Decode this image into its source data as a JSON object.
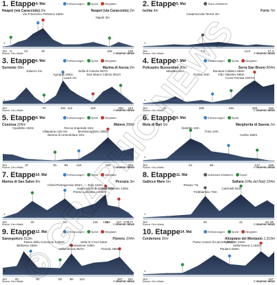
{
  "legend": {
    "sprint": "Sprint",
    "refresh": "Erfrischungen",
    "mountain": "Bergfahrt",
    "team_tt": "Team Zeitfahren",
    "indiv_tt": "Individuell Zeitfahren"
  },
  "colors": {
    "sprint": "#2a8d3c",
    "refresh": "#3a82c4",
    "mountain": "#c0392b",
    "profile_top": "#1e2a44",
    "profile_mid": "#3c4f6e",
    "ground": "#c9d3dc"
  },
  "source": "Source: Giro d'Italia",
  "credit": "© GRAPHIC NEWS",
  "watermark": "© GRAPHIC NEWS",
  "chart_data": [
    {
      "type": "area",
      "title": "1. Etappe",
      "date": "4. Mai",
      "start": "Neapel (via Caracciolo)",
      "start_alt": "2m",
      "finish": "Neapel (via Caracciolo)",
      "finish_alt": "2m",
      "xlabel": "km",
      "x_ticks": [
        8,
        23,
        40,
        106,
        130
      ],
      "xlim": [
        0,
        130
      ],
      "profile": [
        [
          0,
          2
        ],
        [
          8,
          10
        ],
        [
          15,
          40
        ],
        [
          23,
          60
        ],
        [
          30,
          110
        ],
        [
          40,
          158
        ],
        [
          50,
          60
        ],
        [
          60,
          20
        ],
        [
          75,
          20
        ],
        [
          90,
          40
        ],
        [
          106,
          3
        ],
        [
          115,
          40
        ],
        [
          130,
          2
        ]
      ],
      "annotations": [
        {
          "text": "Via Francesco Petrarca 158m",
          "x": 40
        },
        {
          "text": "Napoli 3m",
          "x": 106
        }
      ],
      "markers": [
        {
          "kind": "refresh",
          "x": 35
        },
        {
          "kind": "sprint",
          "x": 8
        },
        {
          "kind": "mountain",
          "x": 40
        },
        {
          "kind": "sprint",
          "x": 106
        }
      ]
    },
    {
      "type": "area",
      "title": "2. Etappe",
      "date": "5. Mai",
      "start": "Ischia",
      "start_alt": "4m",
      "finish": "Forio",
      "finish_alt": "7m",
      "xlabel": "km",
      "x_ticks": [
        7.9,
        13.8,
        17.4
      ],
      "xlim": [
        0,
        17.4
      ],
      "profile": [
        [
          0,
          4
        ],
        [
          2,
          10
        ],
        [
          4,
          20
        ],
        [
          6,
          15
        ],
        [
          7.9,
          30
        ],
        [
          10,
          40
        ],
        [
          12,
          25
        ],
        [
          13.8,
          12
        ],
        [
          15,
          20
        ],
        [
          17.4,
          7
        ]
      ],
      "annotations": [
        {
          "text": "Casamicciola Terme 3m",
          "x": 7.9
        }
      ],
      "markers": [
        {
          "kind": "team_tt",
          "x": 7.9
        }
      ]
    },
    {
      "type": "area",
      "title": "3. Etappe",
      "date": "6. Mai",
      "start": "Sorrento",
      "start_alt": "58m",
      "finish": "Marina di Ascea",
      "finish_alt": "2m",
      "xlabel": "km",
      "x_ticks": [
        70,
        102,
        114,
        153,
        200,
        222
      ],
      "xlim": [
        0,
        222
      ],
      "profile": [
        [
          0,
          58
        ],
        [
          20,
          100
        ],
        [
          40,
          400
        ],
        [
          55,
          150
        ],
        [
          70,
          10
        ],
        [
          90,
          200
        ],
        [
          102,
          580
        ],
        [
          114,
          350
        ],
        [
          130,
          200
        ],
        [
          153,
          40
        ],
        [
          170,
          300
        ],
        [
          185,
          420
        ],
        [
          200,
          250
        ],
        [
          222,
          2
        ]
      ],
      "annotations": [
        {
          "text": "Salerno 4m",
          "x": 40
        },
        {
          "text": "Agropoli 168m",
          "x": 102
        },
        {
          "text": "Laura 7m",
          "x": 114
        },
        {
          "text": "Sella di Catona 587m",
          "x": 153
        },
        {
          "text": "San Mauro Cilento 551m",
          "x": 200
        }
      ],
      "markers": [
        {
          "kind": "sprint",
          "x": 70
        },
        {
          "kind": "refresh",
          "x": 102
        },
        {
          "kind": "mountain",
          "x": 153
        },
        {
          "kind": "sprint",
          "x": 200
        }
      ]
    },
    {
      "type": "area",
      "title": "4. Etappe",
      "date": "7. Mai",
      "start": "Policastro Bussentino",
      "start_alt": "20m",
      "finish": "Serra San Bruno",
      "finish_alt": "804m",
      "xlabel": "km",
      "x_ticks": [
        40,
        109,
        165,
        209,
        246
      ],
      "xlim": [
        0,
        246
      ],
      "profile": [
        [
          0,
          20
        ],
        [
          20,
          60
        ],
        [
          40,
          120
        ],
        [
          60,
          300
        ],
        [
          80,
          80
        ],
        [
          109,
          150
        ],
        [
          130,
          60
        ],
        [
          165,
          200
        ],
        [
          190,
          700
        ],
        [
          209,
          960
        ],
        [
          225,
          700
        ],
        [
          246,
          804
        ]
      ],
      "annotations": [
        {
          "text": "Maratea 61m",
          "x": 60
        },
        {
          "text": "Scalea 16m",
          "x": 109
        },
        {
          "text": "Croce Ferrata 1007m",
          "x": 209
        },
        {
          "text": "Bonavia Calabro 268m",
          "x": 190
        },
        {
          "text": "Vibo Valentia 496m",
          "x": 165
        }
      ],
      "markers": [
        {
          "kind": "refresh",
          "x": 130
        },
        {
          "kind": "sprint",
          "x": 165
        },
        {
          "kind": "mountain",
          "x": 209
        }
      ]
    },
    {
      "type": "area",
      "title": "5. Etappe",
      "date": "8. Mai",
      "start": "Cosenza",
      "start_alt": "205m",
      "finish": "Matera",
      "finish_alt": "398m",
      "xlabel": "km",
      "x_ticks": [
        37,
        81,
        98,
        118,
        163,
        203
      ],
      "xlim": [
        0,
        203
      ],
      "profile": [
        [
          0,
          205
        ],
        [
          15,
          190
        ],
        [
          37,
          60
        ],
        [
          60,
          30
        ],
        [
          81,
          10
        ],
        [
          98,
          40
        ],
        [
          118,
          50
        ],
        [
          140,
          300
        ],
        [
          163,
          720
        ],
        [
          185,
          300
        ],
        [
          203,
          398
        ]
      ],
      "annotations": [
        {
          "text": "Cipolletto 192m",
          "x": 15
        },
        {
          "text": "Villapiana Lido 6m",
          "x": 81
        },
        {
          "text": "Marina di Amendolara 10m",
          "x": 98
        },
        {
          "text": "Rocca Imperiale 15m",
          "x": 118
        },
        {
          "text": "Montescaglioso 308m",
          "x": 163
        }
      ],
      "markers": [
        {
          "kind": "refresh",
          "x": 118
        },
        {
          "kind": "sprint",
          "x": 81
        },
        {
          "kind": "mountain",
          "x": 163
        }
      ]
    },
    {
      "type": "area",
      "title": "6. Etappe",
      "date": "9. Mai",
      "start": "Mola di Bari",
      "start_alt": "5m",
      "finish": "Margherita di Savoia",
      "finish_alt": "1m",
      "xlabel": "km",
      "x_ticks": [
        61,
        88,
        147,
        169
      ],
      "xlim": [
        0,
        169
      ],
      "profile": [
        [
          0,
          5
        ],
        [
          30,
          20
        ],
        [
          61,
          190
        ],
        [
          75,
          150
        ],
        [
          88,
          80
        ],
        [
          110,
          60
        ],
        [
          130,
          30
        ],
        [
          147,
          20
        ],
        [
          160,
          5
        ],
        [
          169,
          1
        ]
      ],
      "annotations": [
        {
          "text": "Barletta 13m",
          "x": 61
        },
        {
          "text": "Trani 10m",
          "x": 88
        },
        {
          "text": "Andria 155m",
          "x": 147
        }
      ],
      "markers": [
        {
          "kind": "sprint",
          "x": 61
        },
        {
          "kind": "refresh",
          "x": 110
        },
        {
          "kind": "sprint",
          "x": 147
        }
      ]
    },
    {
      "type": "area",
      "title": "7. Etappe",
      "date": "10. Mai",
      "start": "Marina di San Salvo",
      "start_alt": "8m",
      "finish": "Pescara",
      "finish_alt": "3m",
      "xlabel": "km",
      "x_ticks": [
        40,
        84,
        125,
        139,
        142,
        157,
        170,
        177
      ],
      "xlim": [
        0,
        177
      ],
      "profile": [
        [
          0,
          8
        ],
        [
          20,
          120
        ],
        [
          40,
          400
        ],
        [
          60,
          180
        ],
        [
          84,
          460
        ],
        [
          100,
          200
        ],
        [
          125,
          340
        ],
        [
          139,
          560
        ],
        [
          142,
          300
        ],
        [
          157,
          250
        ],
        [
          170,
          120
        ],
        [
          177,
          3
        ]
      ],
      "annotations": [
        {
          "text": "Chieti-Pietragrossa 384m",
          "x": 84
        },
        {
          "text": "Santa Maria di Ostia 277m",
          "x": 125
        },
        {
          "text": "Passo Lanciano 1306m",
          "x": 139
        },
        {
          "text": "Tollo 162m",
          "x": 125
        },
        {
          "text": "San Silvestro 149m",
          "x": 170
        }
      ],
      "markers": [
        {
          "kind": "sprint",
          "x": 40
        },
        {
          "kind": "refresh",
          "x": 84
        },
        {
          "kind": "mountain",
          "x": 139
        },
        {
          "kind": "mountain",
          "x": 157
        }
      ]
    },
    {
      "type": "area",
      "title": "8. Etappe",
      "date": "11. Mai",
      "start": "Gabicce Mare",
      "start_alt": "6m",
      "finish": "Saltara",
      "finish_alt": "(Villa del Bali) 234m",
      "xlabel": "km",
      "x_ticks": [
        26,
        41,
        52,
        55
      ],
      "xlim": [
        0,
        55
      ],
      "profile": [
        [
          0,
          6
        ],
        [
          10,
          30
        ],
        [
          20,
          60
        ],
        [
          26,
          400
        ],
        [
          32,
          120
        ],
        [
          41,
          430
        ],
        [
          47,
          200
        ],
        [
          52,
          320
        ],
        [
          55,
          234
        ]
      ],
      "annotations": [
        {
          "text": "Pesaro 7m",
          "x": 20
        },
        {
          "text": "Calcinelli 64m",
          "x": 41
        },
        {
          "text": "Trebbiantico 75m",
          "x": 26
        }
      ],
      "markers": [
        {
          "kind": "indiv_tt",
          "x": 26
        },
        {
          "kind": "sprint",
          "x": 41
        }
      ]
    },
    {
      "type": "area",
      "title": "9. Etappe",
      "date": "12. Mai",
      "start": "Sansepolcro",
      "start_alt": "312m",
      "finish": "Florenz",
      "finish_alt": "104m",
      "xlabel": "km",
      "x_ticks": [
        20,
        50,
        82,
        98,
        113,
        167,
        187
      ],
      "xlim": [
        0,
        187
      ],
      "profile": [
        [
          0,
          312
        ],
        [
          20,
          400
        ],
        [
          30,
          1060
        ],
        [
          50,
          330
        ],
        [
          82,
          300
        ],
        [
          98,
          957
        ],
        [
          113,
          400
        ],
        [
          130,
          545
        ],
        [
          150,
          600
        ],
        [
          167,
          800
        ],
        [
          187,
          104
        ]
      ],
      "annotations": [
        {
          "text": "Passo della Consuma 1,060m",
          "x": 30
        },
        {
          "text": "Bibbiena 339m",
          "x": 20
        },
        {
          "text": "Vallombrosa 957m",
          "x": 98
        },
        {
          "text": "Vetta le Croci 545m",
          "x": 130
        },
        {
          "text": "Pontassieve 108m",
          "x": 113
        },
        {
          "text": "Fiesole 295m",
          "x": 167
        }
      ],
      "markers": [
        {
          "kind": "refresh",
          "x": 40
        },
        {
          "kind": "sprint",
          "x": 82
        },
        {
          "kind": "mountain",
          "x": 98
        },
        {
          "kind": "mountain",
          "x": 167
        }
      ]
    },
    {
      "type": "area",
      "title": "10. Etappe",
      "date": "14. Mai",
      "start": "Cordenons",
      "start_alt": "30m",
      "finish": "Altopiano del Montasio",
      "finish_alt": "1,519m",
      "xlabel": "km",
      "x_ticks": [
        167
      ],
      "xlim": [
        0,
        167
      ],
      "profile": [
        [
          0,
          30
        ],
        [
          30,
          100
        ],
        [
          50,
          120
        ],
        [
          70,
          600
        ],
        [
          90,
          1300
        ],
        [
          110,
          700
        ],
        [
          130,
          600
        ],
        [
          150,
          1550
        ],
        [
          160,
          1152
        ],
        [
          167,
          1519
        ]
      ],
      "annotations": [
        {
          "text": "Passo Cason di Lanza 1,552m",
          "x": 90
        },
        {
          "text": "Sella Nevea 1,152m",
          "x": 150
        },
        {
          "text": "Paularo 648m",
          "x": 110
        },
        {
          "text": "Tolmezzo 316m",
          "x": 130
        }
      ],
      "markers": [
        {
          "kind": "sprint",
          "x": 50
        },
        {
          "kind": "refresh",
          "x": 110
        },
        {
          "kind": "mountain",
          "x": 150
        }
      ]
    }
  ]
}
